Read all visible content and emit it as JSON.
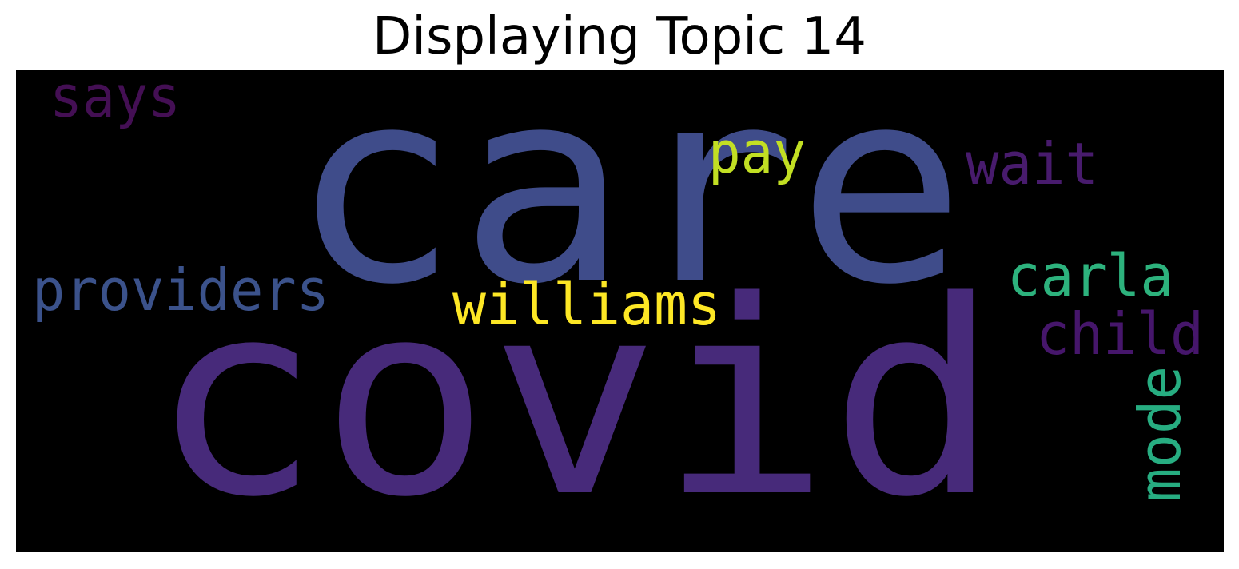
{
  "title": "Displaying Topic 14",
  "background_color": "#000000",
  "words": [
    {
      "text": "care",
      "color": "#3f4c8a"
    },
    {
      "text": "covid",
      "color": "#472a7a"
    },
    {
      "text": "providers",
      "color": "#3b528b"
    },
    {
      "text": "williams",
      "color": "#fde725"
    },
    {
      "text": "pay",
      "color": "#c2df23"
    },
    {
      "text": "wait",
      "color": "#481b6d"
    },
    {
      "text": "says",
      "color": "#440f54"
    },
    {
      "text": "carla",
      "color": "#2db27d"
    },
    {
      "text": "child",
      "color": "#46166b"
    },
    {
      "text": "mode",
      "color": "#27ad81"
    }
  ]
}
